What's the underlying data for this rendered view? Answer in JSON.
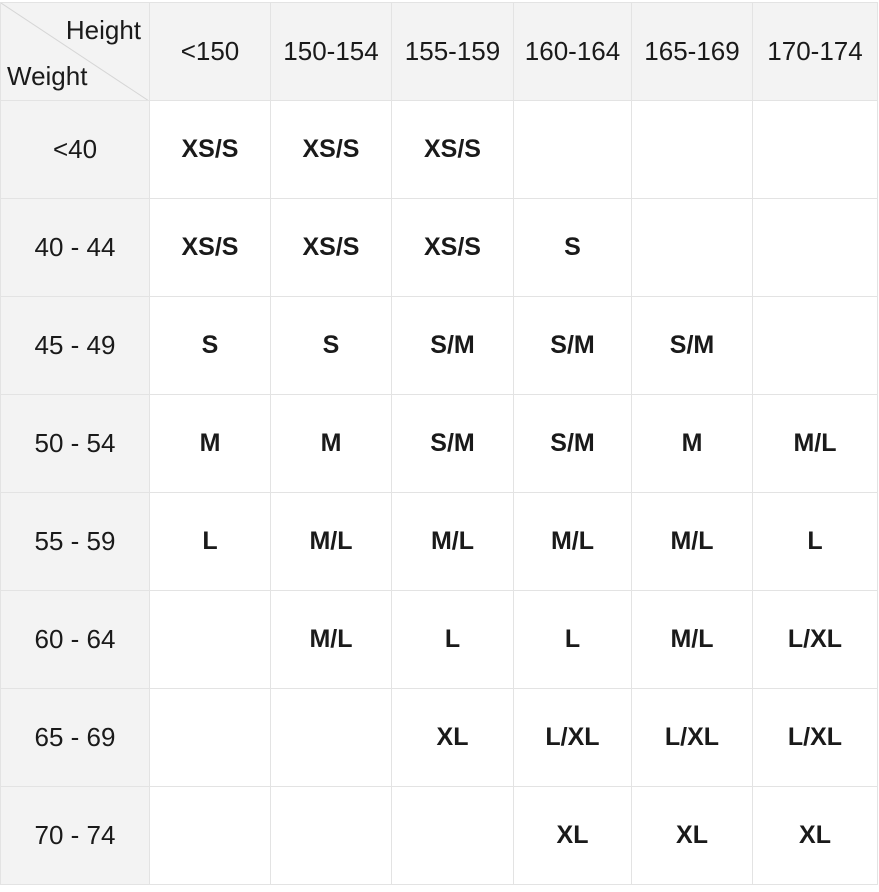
{
  "corner": {
    "height_label": "Height",
    "weight_label": "Weight"
  },
  "columns": [
    "<150",
    "150-154",
    "155-159",
    "160-164",
    "165-169",
    "170-174"
  ],
  "rows": [
    {
      "weight": "<40",
      "sizes": [
        "XS/S",
        "XS/S",
        "XS/S",
        "",
        "",
        ""
      ]
    },
    {
      "weight": "40 - 44",
      "sizes": [
        "XS/S",
        "XS/S",
        "XS/S",
        "S",
        "",
        ""
      ]
    },
    {
      "weight": "45 - 49",
      "sizes": [
        "S",
        "S",
        "S/M",
        "S/M",
        "S/M",
        ""
      ]
    },
    {
      "weight": "50 - 54",
      "sizes": [
        "M",
        "M",
        "S/M",
        "S/M",
        "M",
        "M/L"
      ]
    },
    {
      "weight": "55 - 59",
      "sizes": [
        "L",
        "M/L",
        "M/L",
        "M/L",
        "M/L",
        "L"
      ]
    },
    {
      "weight": "60 - 64",
      "sizes": [
        "",
        "M/L",
        "L",
        "L",
        "M/L",
        "L/XL"
      ]
    },
    {
      "weight": "65 - 69",
      "sizes": [
        "",
        "",
        "XL",
        "L/XL",
        "L/XL",
        "L/XL"
      ]
    },
    {
      "weight": "70 - 74",
      "sizes": [
        "",
        "",
        "",
        "XL",
        "XL",
        "XL"
      ]
    }
  ]
}
